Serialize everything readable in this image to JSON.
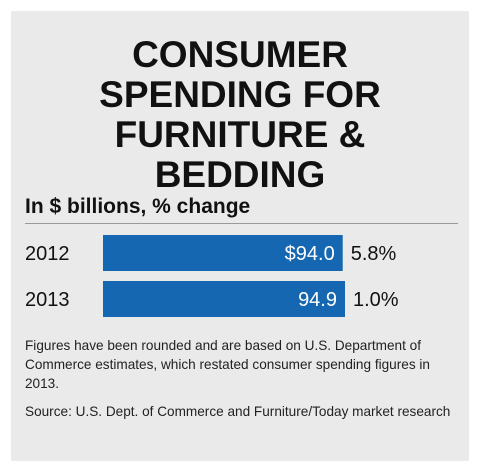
{
  "title_lines": [
    "CONSUMER",
    "SPENDING FOR",
    "FURNITURE &",
    "BEDDING"
  ],
  "subtitle": "In $ billions, % change",
  "bar_color": "#1467b0",
  "chart_data": {
    "type": "bar",
    "orientation": "horizontal",
    "title": "CONSUMER SPENDING FOR FURNITURE & BEDDING",
    "subtitle": "In $ billions, % change",
    "categories": [
      "2012",
      "2013"
    ],
    "values": [
      94.0,
      94.9
    ],
    "value_labels": [
      "$94.0",
      "94.9"
    ],
    "pct_change": [
      "5.8%",
      "1.0%"
    ],
    "xlim": [
      0,
      94.9
    ],
    "grid": false,
    "legend": "none"
  },
  "footnote": "Figures have been rounded and are based on U.S. Department of Commerce estimates, which restated consumer spending figures in 2013.",
  "source": "Source:  U.S. Dept. of Commerce and Furniture/Today market research"
}
